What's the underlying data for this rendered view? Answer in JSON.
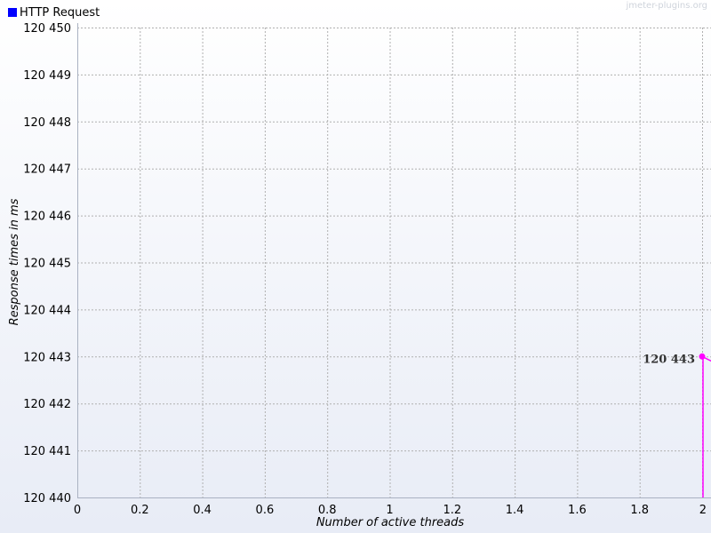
{
  "chart_data": {
    "type": "line",
    "title": "",
    "xlabel": "Number of active threads",
    "ylabel": "Response times in ms",
    "xlim": [
      0,
      2
    ],
    "ylim": [
      120440,
      120450
    ],
    "x_ticks": [
      0,
      0.2,
      0.4,
      0.6,
      0.8,
      1,
      1.2,
      1.4,
      1.6,
      1.8,
      2
    ],
    "x_tick_labels": [
      "0",
      "0.2",
      "0.4",
      "0.6",
      "0.8",
      "1",
      "1.2",
      "1.4",
      "1.6",
      "1.8",
      "2"
    ],
    "y_ticks": [
      120440,
      120441,
      120442,
      120443,
      120444,
      120445,
      120446,
      120447,
      120448,
      120449,
      120450
    ],
    "y_tick_labels": [
      "120 440",
      "120 441",
      "120 442",
      "120 443",
      "120 444",
      "120 445",
      "120 446",
      "120 447",
      "120 448",
      "120 449",
      "120 450"
    ],
    "grid": true,
    "legend_position": "top-left",
    "series": [
      {
        "name": "HTTP Request",
        "legend_color": "#0000ff",
        "line_color": "#ff00ff",
        "points": [
          {
            "x": 2,
            "y": 120443,
            "label": "120 443"
          }
        ]
      }
    ]
  },
  "watermark": "jmeter-plugins.org",
  "colors": {
    "plot_bg_top": "#ffffff",
    "plot_bg_bottom": "#e8ecf6",
    "grid": "#b0b0b0",
    "axis": "#aab2c2"
  }
}
